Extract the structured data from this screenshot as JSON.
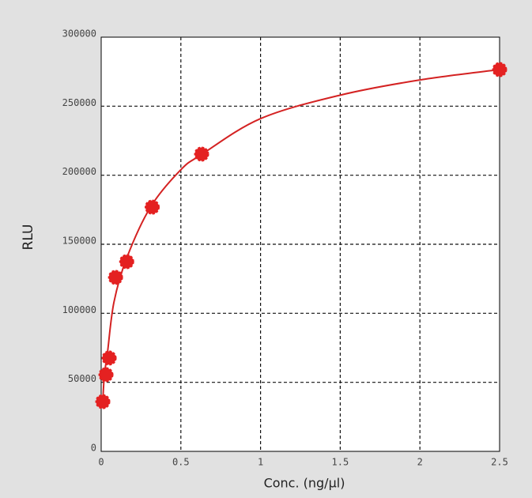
{
  "chart_data": {
    "type": "scatter",
    "xlabel": "Conc. (ng/µl)",
    "ylabel": "RLU",
    "xlim": [
      0,
      2.5
    ],
    "xticks": [
      0,
      0.5,
      1,
      1.5,
      2,
      2.5
    ],
    "ylim": [
      0,
      300000
    ],
    "yticks": [
      0,
      50000,
      100000,
      150000,
      200000,
      250000,
      300000
    ],
    "grid": true,
    "series": [
      {
        "mode": "markers",
        "color": "#e42121",
        "x": [
          0.01,
          0.03,
          0.05,
          0.09,
          0.16,
          0.32,
          0.63,
          2.5
        ],
        "values": [
          36000,
          55500,
          67600,
          126000,
          137400,
          176900,
          215300,
          276500
        ]
      },
      {
        "mode": "line",
        "color": "#d42222",
        "x": [
          0.01,
          0.02,
          0.04,
          0.08,
          0.16,
          0.31,
          0.5,
          0.63,
          1,
          1.5,
          2,
          2.5
        ],
        "values": [
          36000,
          55000,
          72000,
          108000,
          140000,
          177000,
          204000,
          215000,
          241000,
          258000,
          269000,
          276500
        ]
      }
    ]
  }
}
